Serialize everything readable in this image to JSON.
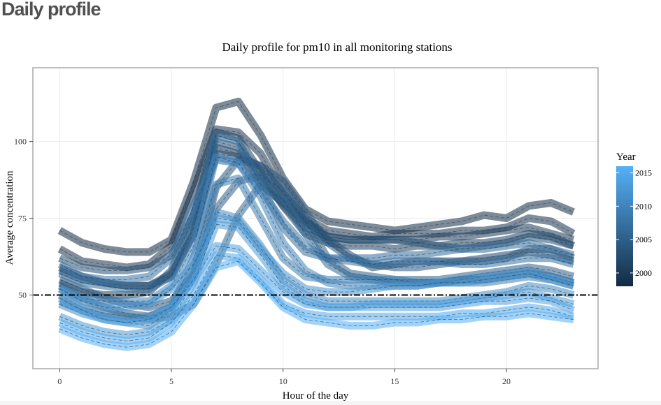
{
  "page": {
    "heading": "Daily profile"
  },
  "chart_data": {
    "type": "line",
    "title": "Daily profile for pm10 in all monitoring stations",
    "xlabel": "Hour of the day",
    "ylabel": "Average concentration",
    "xlim": [
      -1.2,
      24.1
    ],
    "ylim": [
      26,
      124
    ],
    "x_ticks": [
      0,
      5,
      10,
      15,
      20
    ],
    "y_ticks": [
      50,
      75,
      100
    ],
    "grid": true,
    "reference_line": {
      "y": 50,
      "style": "dash-dot",
      "color": "#000000"
    },
    "legend": {
      "title": "Year",
      "position": "right",
      "ticks": [
        2000,
        2005,
        2010,
        2015
      ],
      "range": [
        1998,
        2016
      ],
      "color_low": "#132b43",
      "color_high": "#56b1f7"
    },
    "x": [
      0,
      1,
      2,
      3,
      4,
      5,
      6,
      7,
      8,
      9,
      10,
      11,
      12,
      13,
      14,
      15,
      16,
      17,
      18,
      19,
      20,
      21,
      22,
      23
    ],
    "series": [
      {
        "year": 1998,
        "values": [
          71,
          67,
          65,
          64,
          64,
          68,
          87,
          111,
          113,
          102,
          88,
          78,
          74,
          73,
          72,
          71,
          72,
          73,
          74,
          76,
          75,
          79,
          80,
          77
        ]
      },
      {
        "year": 1999,
        "values": [
          65,
          61,
          60,
          59,
          60,
          66,
          84,
          104,
          103,
          96,
          83,
          75,
          71,
          70,
          69,
          70,
          70,
          70,
          71,
          71,
          72,
          75,
          74,
          70
        ]
      },
      {
        "year": 2000,
        "values": [
          59,
          56,
          54,
          53,
          53,
          56,
          70,
          98,
          96,
          86,
          80,
          74,
          69,
          68,
          68,
          68,
          68,
          69,
          69,
          70,
          71,
          72,
          70,
          68
        ]
      },
      {
        "year": 2001,
        "values": [
          54,
          51,
          50,
          50,
          51,
          58,
          76,
          103,
          101,
          90,
          79,
          70,
          67,
          66,
          66,
          65,
          66,
          66,
          67,
          67,
          68,
          70,
          69,
          66
        ]
      },
      {
        "year": 2002,
        "values": [
          58,
          55,
          54,
          53,
          53,
          57,
          70,
          96,
          95,
          92,
          83,
          74,
          68,
          63,
          59,
          60,
          61,
          61,
          61,
          62,
          63,
          64,
          63,
          61
        ]
      },
      {
        "year": 2003,
        "values": [
          62,
          59,
          58,
          58,
          59,
          63,
          76,
          100,
          98,
          89,
          79,
          72,
          69,
          68,
          68,
          68,
          67,
          66,
          65,
          66,
          67,
          69,
          68,
          66
        ]
      },
      {
        "year": 2004,
        "values": [
          55,
          52,
          49,
          47,
          46,
          48,
          57,
          85,
          94,
          92,
          87,
          77,
          67,
          62,
          60,
          59,
          59,
          60,
          61,
          61,
          62,
          65,
          65,
          62
        ]
      },
      {
        "year": 2005,
        "values": [
          53,
          49,
          46,
          44,
          43,
          46,
          56,
          78,
          87,
          89,
          84,
          74,
          62,
          57,
          56,
          55,
          55,
          55,
          56,
          57,
          58,
          59,
          58,
          56
        ]
      },
      {
        "year": 2006,
        "values": [
          50,
          46,
          44,
          43,
          42,
          43,
          47,
          60,
          76,
          86,
          81,
          70,
          60,
          56,
          55,
          54,
          54,
          54,
          55,
          55,
          56,
          57,
          56,
          54
        ]
      },
      {
        "year": 2007,
        "values": [
          57,
          54,
          53,
          52,
          52,
          56,
          72,
          102,
          100,
          86,
          72,
          64,
          62,
          62,
          62,
          63,
          63,
          64,
          65,
          65,
          66,
          67,
          65,
          63
        ]
      },
      {
        "year": 2008,
        "values": [
          60,
          56,
          55,
          55,
          56,
          62,
          79,
          94,
          93,
          84,
          74,
          66,
          62,
          61,
          60,
          61,
          61,
          61,
          60,
          60,
          61,
          62,
          62,
          60
        ]
      },
      {
        "year": 2009,
        "values": [
          48,
          45,
          43,
          42,
          43,
          46,
          62,
          86,
          88,
          75,
          62,
          56,
          55,
          55,
          55,
          55,
          54,
          54,
          54,
          54,
          55,
          56,
          55,
          53
        ]
      },
      {
        "year": 2010,
        "values": [
          52,
          49,
          48,
          48,
          48,
          53,
          66,
          95,
          93,
          82,
          67,
          58,
          54,
          53,
          53,
          53,
          53,
          54,
          55,
          56,
          57,
          58,
          56,
          54
        ]
      },
      {
        "year": 2011,
        "values": [
          47,
          44,
          42,
          41,
          40,
          45,
          57,
          77,
          75,
          66,
          55,
          50,
          48,
          48,
          48,
          48,
          48,
          48,
          49,
          50,
          51,
          53,
          52,
          50
        ]
      },
      {
        "year": 2012,
        "values": [
          52,
          48,
          46,
          46,
          47,
          52,
          60,
          75,
          74,
          65,
          57,
          52,
          51,
          51,
          52,
          53,
          53,
          54,
          54,
          55,
          56,
          57,
          55,
          53
        ]
      },
      {
        "year": 2013,
        "values": [
          43,
          40,
          38,
          37,
          38,
          42,
          54,
          73,
          72,
          63,
          53,
          48,
          46,
          46,
          47,
          47,
          47,
          47,
          48,
          49,
          50,
          51,
          49,
          47
        ]
      },
      {
        "year": 2014,
        "values": [
          49,
          45,
          42,
          41,
          42,
          46,
          55,
          66,
          65,
          58,
          51,
          47,
          46,
          46,
          46,
          46,
          46,
          46,
          47,
          48,
          48,
          49,
          48,
          45
        ]
      },
      {
        "year": 2015,
        "values": [
          41,
          38,
          36,
          35,
          36,
          41,
          50,
          63,
          62,
          55,
          47,
          44,
          43,
          43,
          43,
          43,
          43,
          43,
          44,
          44,
          45,
          46,
          45,
          43
        ]
      },
      {
        "year": 2016,
        "values": [
          39,
          36,
          34,
          33,
          34,
          38,
          47,
          59,
          61,
          54,
          46,
          42,
          41,
          40,
          40,
          41,
          41,
          42,
          42,
          43,
          43,
          44,
          43,
          42
        ]
      }
    ]
  }
}
